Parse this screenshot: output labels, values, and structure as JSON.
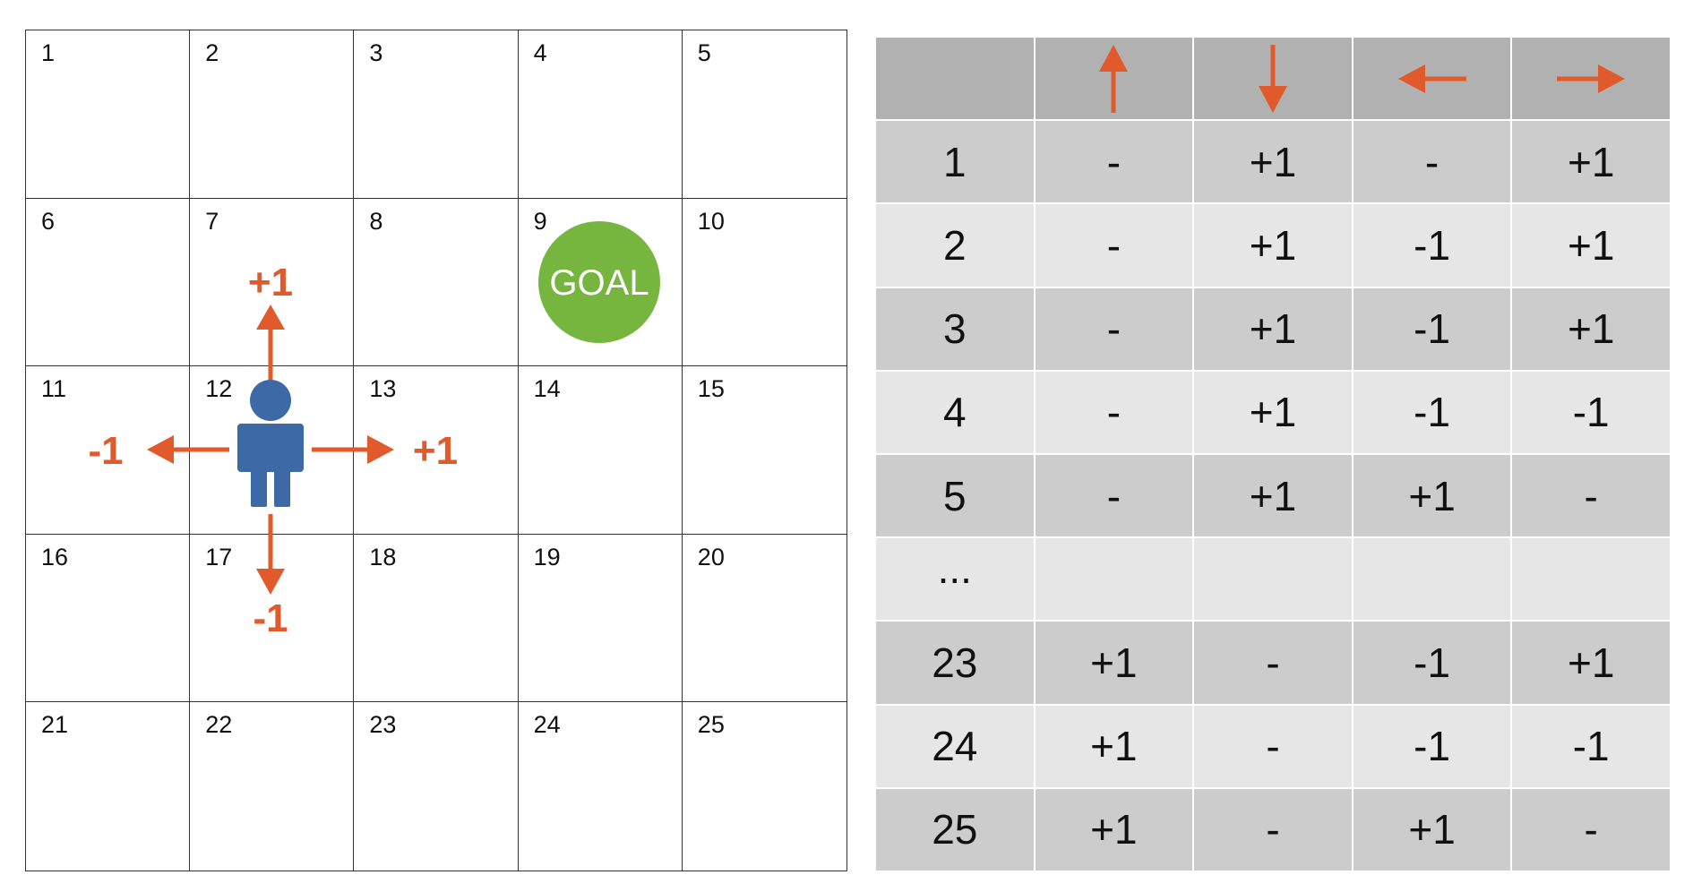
{
  "grid": {
    "cells": [
      "1",
      "2",
      "3",
      "4",
      "5",
      "6",
      "7",
      "8",
      "9",
      "10",
      "11",
      "12",
      "13",
      "14",
      "15",
      "16",
      "17",
      "18",
      "19",
      "20",
      "21",
      "22",
      "23",
      "24",
      "25"
    ],
    "goal_label": "GOAL",
    "agent_cell": "12",
    "goal_cell": "9",
    "rewards": {
      "up": "+1",
      "left": "-1",
      "right": "+1",
      "down": "-1"
    },
    "colors": {
      "arrow": "#e05a2b",
      "agent": "#3d6aa6",
      "goal": "#76b53e",
      "line": "#333333"
    }
  },
  "table": {
    "header_icons": [
      "",
      "arrow-up-icon",
      "arrow-down-icon",
      "arrow-left-icon",
      "arrow-right-icon"
    ],
    "rows": [
      {
        "state": "1",
        "up": "-",
        "down": "+1",
        "left": "-",
        "right": "+1"
      },
      {
        "state": "2",
        "up": "-",
        "down": "+1",
        "left": "-1",
        "right": "+1"
      },
      {
        "state": "3",
        "up": "-",
        "down": "+1",
        "left": "-1",
        "right": "+1"
      },
      {
        "state": "4",
        "up": "-",
        "down": "+1",
        "left": "-1",
        "right": "-1"
      },
      {
        "state": "5",
        "up": "-",
        "down": "+1",
        "left": "+1",
        "right": "-"
      },
      {
        "state": "...",
        "up": "",
        "down": "",
        "left": "",
        "right": ""
      },
      {
        "state": "23",
        "up": "+1",
        "down": "-",
        "left": "-1",
        "right": "+1"
      },
      {
        "state": "24",
        "up": "+1",
        "down": "-",
        "left": "-1",
        "right": "-1"
      },
      {
        "state": "25",
        "up": "+1",
        "down": "-",
        "left": "+1",
        "right": "-"
      }
    ],
    "colors": {
      "header": "#b1b1b1",
      "dark_row": "#cccccc",
      "light_row": "#e6e6e6"
    }
  }
}
